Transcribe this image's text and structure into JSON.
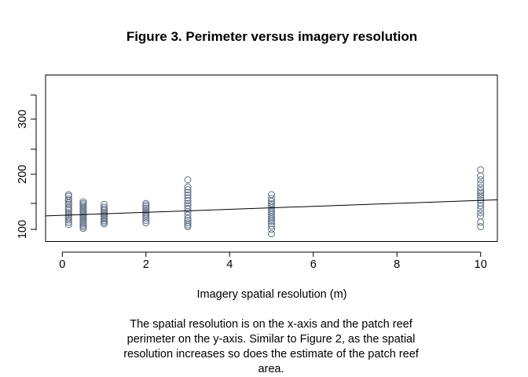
{
  "figure": {
    "title": "Figure 3. Perimeter versus imagery resolution",
    "caption": "The spatial resolution is on the x-axis and the patch reef perimeter on the y-axis. Similar to Figure 2, as the spatial resolution increases so does the estimate of the patch reef area."
  },
  "chart_data": {
    "type": "scatter",
    "title": "Figure 3. Perimeter versus imagery resolution",
    "xlabel": "Imagery spatial resolution (m)",
    "ylabel": "",
    "xlim": [
      -0.4,
      10.4
    ],
    "ylim": [
      78,
      380
    ],
    "xticks": [
      0,
      2,
      4,
      6,
      8,
      10
    ],
    "yticks": [
      100,
      200,
      300
    ],
    "grid": false,
    "point_color": "#5f6f84",
    "points": [
      {
        "x": 0.15,
        "y": [
          163,
          160,
          155,
          152,
          148,
          145,
          140,
          137,
          134,
          130,
          127,
          124,
          121,
          117,
          113,
          109
        ]
      },
      {
        "x": 0.5,
        "y": [
          150,
          147,
          144,
          141,
          138,
          135,
          132,
          129,
          126,
          123,
          120,
          117,
          114,
          111,
          108,
          105,
          102
        ]
      },
      {
        "x": 1,
        "y": [
          145,
          140,
          137,
          134,
          131,
          128,
          125,
          122,
          119,
          116,
          113,
          110
        ]
      },
      {
        "x": 2,
        "y": [
          147,
          144,
          141,
          138,
          134,
          131,
          128,
          124,
          120,
          116,
          112
        ]
      },
      {
        "x": 3,
        "y": [
          190,
          177,
          172,
          167,
          162,
          157,
          152,
          147,
          143,
          138,
          132,
          126,
          120,
          116,
          112,
          108,
          105
        ]
      },
      {
        "x": 5,
        "y": [
          163,
          156,
          151,
          147,
          143,
          139,
          135,
          131,
          127,
          123,
          119,
          115,
          111,
          106,
          100,
          92
        ]
      },
      {
        "x": 10,
        "y": [
          208,
          197,
          190,
          183,
          176,
          170,
          166,
          162,
          158,
          153,
          148,
          143,
          137,
          130,
          124,
          113,
          105
        ]
      }
    ],
    "trend_line": {
      "x": [
        -0.4,
        10.4
      ],
      "y": [
        124.5,
        153.7
      ]
    }
  }
}
